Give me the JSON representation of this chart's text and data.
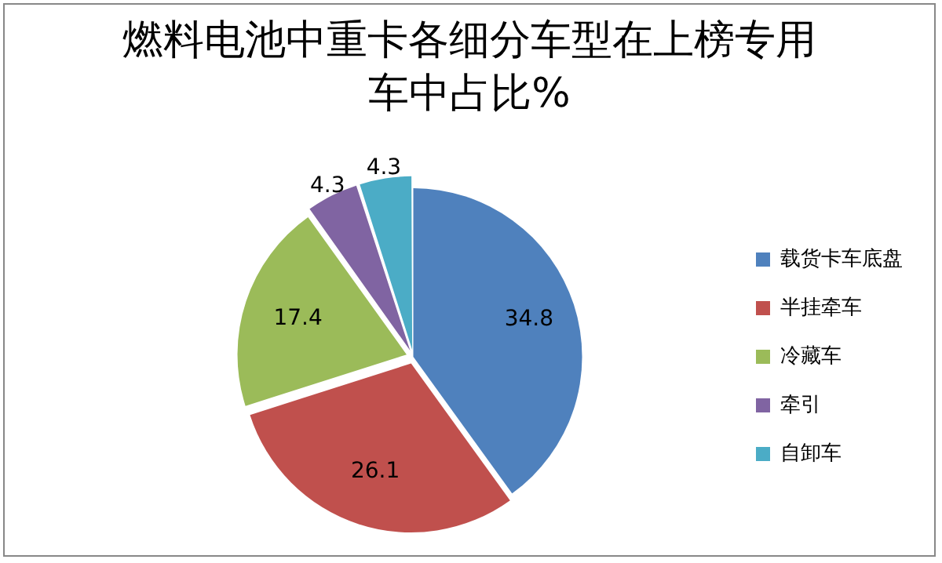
{
  "chart_data": {
    "type": "pie",
    "title": "燃料电池中重卡各细分车型在上榜专用车中占比%",
    "categories": [
      "载货卡车底盘",
      "半挂牵车",
      "冷藏车",
      "牵引",
      "自卸车"
    ],
    "values": [
      34.8,
      26.1,
      17.4,
      4.3,
      4.3
    ],
    "colors": [
      "#4f81bd",
      "#c0504d",
      "#9bbb59",
      "#8064a2",
      "#4bacc6"
    ],
    "data_labels": true,
    "legend": "right"
  }
}
